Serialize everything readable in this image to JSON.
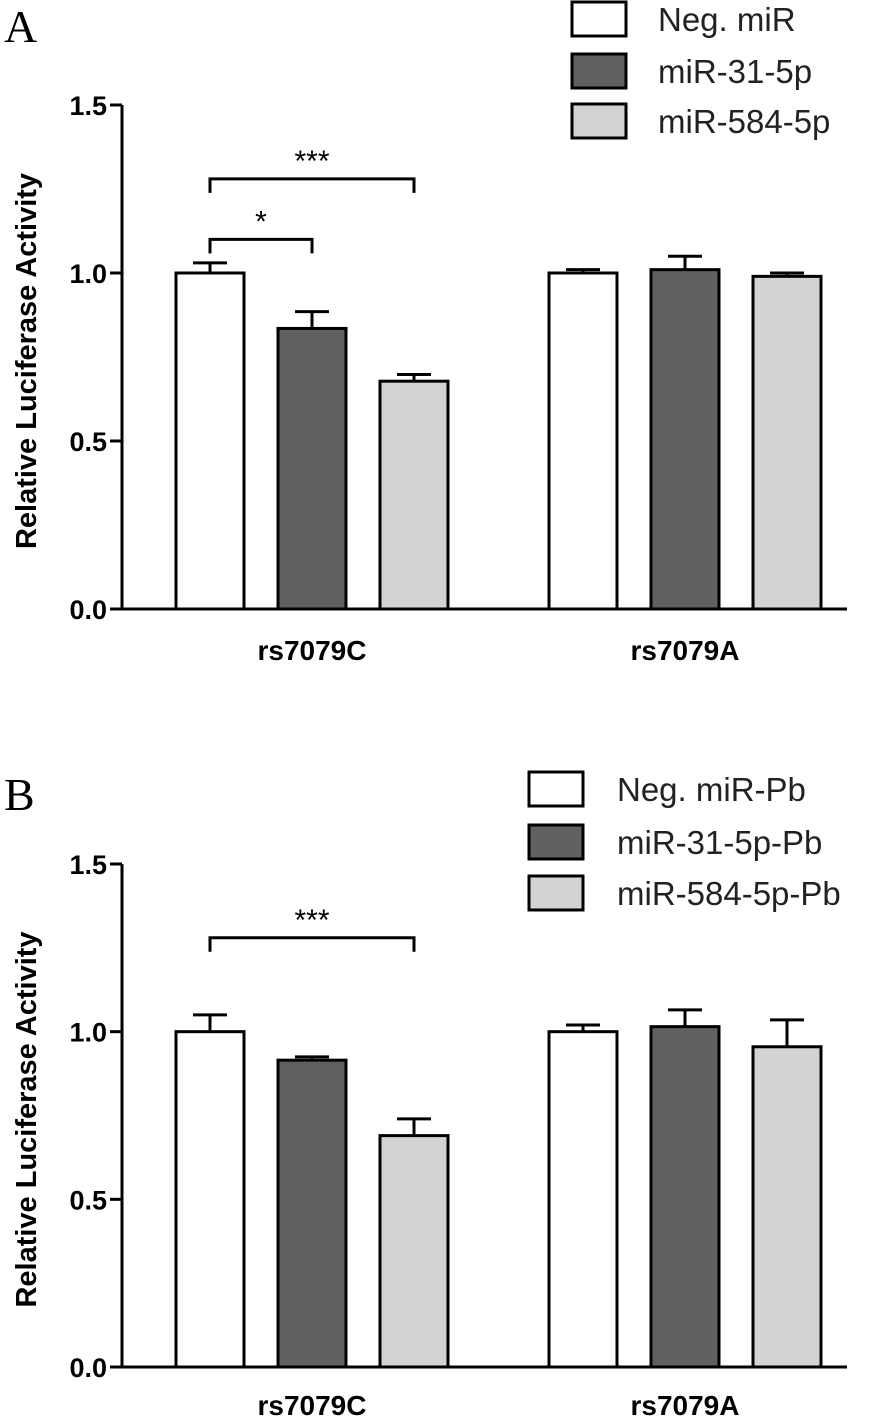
{
  "chart_data": [
    {
      "type": "bar",
      "panel": "A",
      "ylabel": "Relative Luciferase Activity",
      "ylim": [
        0,
        1.5
      ],
      "yticks": [
        "0.0",
        "0.5",
        "1.0",
        "1.5"
      ],
      "categories": [
        "rs7079C",
        "rs7079A"
      ],
      "legend_position": "top-right",
      "series": [
        {
          "name": "Neg. miR",
          "color": "#ffffff",
          "values": [
            1.0,
            1.0
          ],
          "errors": [
            0.03,
            0.01
          ]
        },
        {
          "name": "miR-31-5p",
          "color": "#606060",
          "values": [
            0.835,
            1.01
          ],
          "errors": [
            0.05,
            0.04
          ]
        },
        {
          "name": "miR-584-5p",
          "color": "#d3d3d3",
          "values": [
            0.678,
            0.99
          ],
          "errors": [
            0.02,
            0.01
          ]
        }
      ],
      "significance": [
        {
          "label": "*",
          "category": 0,
          "from_series": 0,
          "to_series": 1,
          "y": 1.1
        },
        {
          "label": "***",
          "category": 0,
          "from_series": 0,
          "to_series": 2,
          "y": 1.28
        }
      ]
    },
    {
      "type": "bar",
      "panel": "B",
      "ylabel": "Relative Luciferase Activity",
      "ylim": [
        0,
        1.5
      ],
      "yticks": [
        "0.0",
        "0.5",
        "1.0",
        "1.5"
      ],
      "categories": [
        "rs7079C",
        "rs7079A"
      ],
      "legend_position": "top-right",
      "series": [
        {
          "name": "Neg. miR-Pb",
          "color": "#ffffff",
          "values": [
            1.0,
            1.0
          ],
          "errors": [
            0.05,
            0.02
          ]
        },
        {
          "name": "miR-31-5p-Pb",
          "color": "#606060",
          "values": [
            0.915,
            1.015
          ],
          "errors": [
            0.01,
            0.05
          ]
        },
        {
          "name": "miR-584-5p-Pb",
          "color": "#d3d3d3",
          "values": [
            0.69,
            0.955
          ],
          "errors": [
            0.05,
            0.08
          ]
        }
      ],
      "significance": [
        {
          "label": "***",
          "category": 0,
          "from_series": 0,
          "to_series": 2,
          "y": 1.28
        }
      ]
    }
  ]
}
